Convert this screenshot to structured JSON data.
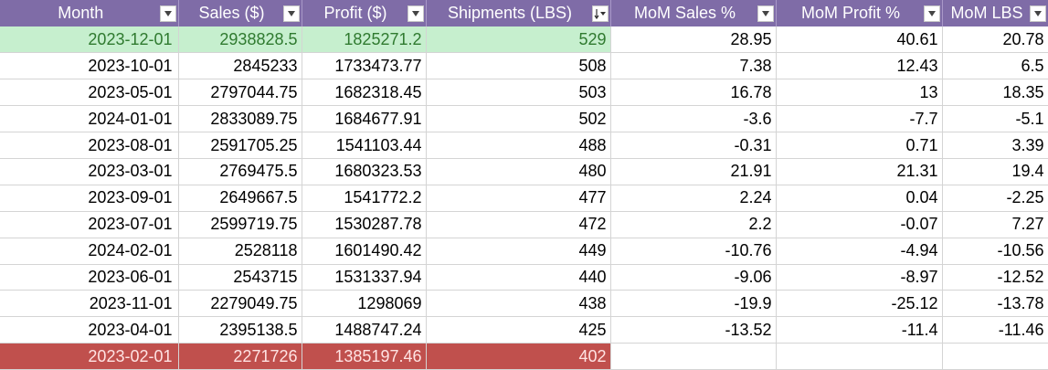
{
  "colors": {
    "header_bg": "#7f6ca7",
    "header_text": "#ffffff",
    "max_row_bg": "#c6efce",
    "max_row_text": "#2f7a2f",
    "min_row_bg": "#c0504d",
    "min_row_text": "#ffe3e3"
  },
  "columns": [
    {
      "label": "Month",
      "filter_icon": "dropdown-arrow-icon"
    },
    {
      "label": "Sales ($)",
      "filter_icon": "dropdown-arrow-icon"
    },
    {
      "label": "Profit ($)",
      "filter_icon": "dropdown-arrow-icon"
    },
    {
      "label": "Shipments (LBS)",
      "filter_icon": "sort-descending-filter-icon"
    },
    {
      "label": "MoM Sales %",
      "filter_icon": "dropdown-arrow-icon"
    },
    {
      "label": "MoM Profit %",
      "filter_icon": "dropdown-arrow-icon"
    },
    {
      "label": "MoM LBS",
      "filter_icon": "dropdown-arrow-icon"
    }
  ],
  "rows": [
    {
      "month": "2023-12-01",
      "sales": "2938828.5",
      "profit": "1825271.2",
      "shipments": "529",
      "mom_sales": "28.95",
      "mom_profit": "40.61",
      "mom_lbs": "20.78",
      "highlight": "max"
    },
    {
      "month": "2023-10-01",
      "sales": "2845233",
      "profit": "1733473.77",
      "shipments": "508",
      "mom_sales": "7.38",
      "mom_profit": "12.43",
      "mom_lbs": "6.5",
      "highlight": ""
    },
    {
      "month": "2023-05-01",
      "sales": "2797044.75",
      "profit": "1682318.45",
      "shipments": "503",
      "mom_sales": "16.78",
      "mom_profit": "13",
      "mom_lbs": "18.35",
      "highlight": ""
    },
    {
      "month": "2024-01-01",
      "sales": "2833089.75",
      "profit": "1684677.91",
      "shipments": "502",
      "mom_sales": "-3.6",
      "mom_profit": "-7.7",
      "mom_lbs": "-5.1",
      "highlight": ""
    },
    {
      "month": "2023-08-01",
      "sales": "2591705.25",
      "profit": "1541103.44",
      "shipments": "488",
      "mom_sales": "-0.31",
      "mom_profit": "0.71",
      "mom_lbs": "3.39",
      "highlight": ""
    },
    {
      "month": "2023-03-01",
      "sales": "2769475.5",
      "profit": "1680323.53",
      "shipments": "480",
      "mom_sales": "21.91",
      "mom_profit": "21.31",
      "mom_lbs": "19.4",
      "highlight": ""
    },
    {
      "month": "2023-09-01",
      "sales": "2649667.5",
      "profit": "1541772.2",
      "shipments": "477",
      "mom_sales": "2.24",
      "mom_profit": "0.04",
      "mom_lbs": "-2.25",
      "highlight": ""
    },
    {
      "month": "2023-07-01",
      "sales": "2599719.75",
      "profit": "1530287.78",
      "shipments": "472",
      "mom_sales": "2.2",
      "mom_profit": "-0.07",
      "mom_lbs": "7.27",
      "highlight": ""
    },
    {
      "month": "2024-02-01",
      "sales": "2528118",
      "profit": "1601490.42",
      "shipments": "449",
      "mom_sales": "-10.76",
      "mom_profit": "-4.94",
      "mom_lbs": "-10.56",
      "highlight": ""
    },
    {
      "month": "2023-06-01",
      "sales": "2543715",
      "profit": "1531337.94",
      "shipments": "440",
      "mom_sales": "-9.06",
      "mom_profit": "-8.97",
      "mom_lbs": "-12.52",
      "highlight": ""
    },
    {
      "month": "2023-11-01",
      "sales": "2279049.75",
      "profit": "1298069",
      "shipments": "438",
      "mom_sales": "-19.9",
      "mom_profit": "-25.12",
      "mom_lbs": "-13.78",
      "highlight": ""
    },
    {
      "month": "2023-04-01",
      "sales": "2395138.5",
      "profit": "1488747.24",
      "shipments": "425",
      "mom_sales": "-13.52",
      "mom_profit": "-11.4",
      "mom_lbs": "-11.46",
      "highlight": ""
    },
    {
      "month": "2023-02-01",
      "sales": "2271726",
      "profit": "1385197.46",
      "shipments": "402",
      "mom_sales": "",
      "mom_profit": "",
      "mom_lbs": "",
      "highlight": "min"
    }
  ]
}
